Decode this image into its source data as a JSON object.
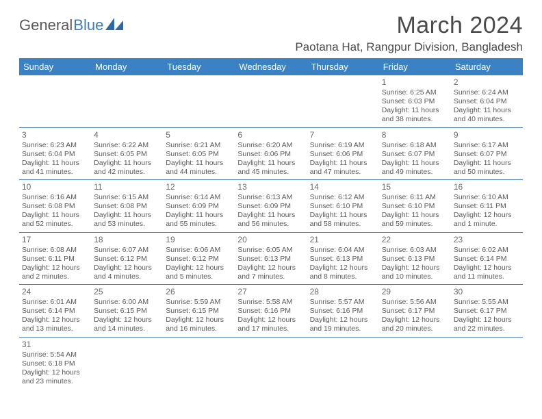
{
  "logo": {
    "text1": "General",
    "text2": "Blue"
  },
  "title": "March 2024",
  "location": "Paotana Hat, Rangpur Division, Bangladesh",
  "colors": {
    "header_bg": "#3b82c4",
    "border": "#4a7db8",
    "text": "#4a4a4a"
  },
  "dayNames": [
    "Sunday",
    "Monday",
    "Tuesday",
    "Wednesday",
    "Thursday",
    "Friday",
    "Saturday"
  ],
  "weeks": [
    [
      null,
      null,
      null,
      null,
      null,
      {
        "n": "1",
        "sr": "Sunrise: 6:25 AM",
        "ss": "Sunset: 6:03 PM",
        "d1": "Daylight: 11 hours",
        "d2": "and 38 minutes."
      },
      {
        "n": "2",
        "sr": "Sunrise: 6:24 AM",
        "ss": "Sunset: 6:04 PM",
        "d1": "Daylight: 11 hours",
        "d2": "and 40 minutes."
      }
    ],
    [
      {
        "n": "3",
        "sr": "Sunrise: 6:23 AM",
        "ss": "Sunset: 6:04 PM",
        "d1": "Daylight: 11 hours",
        "d2": "and 41 minutes."
      },
      {
        "n": "4",
        "sr": "Sunrise: 6:22 AM",
        "ss": "Sunset: 6:05 PM",
        "d1": "Daylight: 11 hours",
        "d2": "and 42 minutes."
      },
      {
        "n": "5",
        "sr": "Sunrise: 6:21 AM",
        "ss": "Sunset: 6:05 PM",
        "d1": "Daylight: 11 hours",
        "d2": "and 44 minutes."
      },
      {
        "n": "6",
        "sr": "Sunrise: 6:20 AM",
        "ss": "Sunset: 6:06 PM",
        "d1": "Daylight: 11 hours",
        "d2": "and 45 minutes."
      },
      {
        "n": "7",
        "sr": "Sunrise: 6:19 AM",
        "ss": "Sunset: 6:06 PM",
        "d1": "Daylight: 11 hours",
        "d2": "and 47 minutes."
      },
      {
        "n": "8",
        "sr": "Sunrise: 6:18 AM",
        "ss": "Sunset: 6:07 PM",
        "d1": "Daylight: 11 hours",
        "d2": "and 49 minutes."
      },
      {
        "n": "9",
        "sr": "Sunrise: 6:17 AM",
        "ss": "Sunset: 6:07 PM",
        "d1": "Daylight: 11 hours",
        "d2": "and 50 minutes."
      }
    ],
    [
      {
        "n": "10",
        "sr": "Sunrise: 6:16 AM",
        "ss": "Sunset: 6:08 PM",
        "d1": "Daylight: 11 hours",
        "d2": "and 52 minutes."
      },
      {
        "n": "11",
        "sr": "Sunrise: 6:15 AM",
        "ss": "Sunset: 6:08 PM",
        "d1": "Daylight: 11 hours",
        "d2": "and 53 minutes."
      },
      {
        "n": "12",
        "sr": "Sunrise: 6:14 AM",
        "ss": "Sunset: 6:09 PM",
        "d1": "Daylight: 11 hours",
        "d2": "and 55 minutes."
      },
      {
        "n": "13",
        "sr": "Sunrise: 6:13 AM",
        "ss": "Sunset: 6:09 PM",
        "d1": "Daylight: 11 hours",
        "d2": "and 56 minutes."
      },
      {
        "n": "14",
        "sr": "Sunrise: 6:12 AM",
        "ss": "Sunset: 6:10 PM",
        "d1": "Daylight: 11 hours",
        "d2": "and 58 minutes."
      },
      {
        "n": "15",
        "sr": "Sunrise: 6:11 AM",
        "ss": "Sunset: 6:10 PM",
        "d1": "Daylight: 11 hours",
        "d2": "and 59 minutes."
      },
      {
        "n": "16",
        "sr": "Sunrise: 6:10 AM",
        "ss": "Sunset: 6:11 PM",
        "d1": "Daylight: 12 hours",
        "d2": "and 1 minute."
      }
    ],
    [
      {
        "n": "17",
        "sr": "Sunrise: 6:08 AM",
        "ss": "Sunset: 6:11 PM",
        "d1": "Daylight: 12 hours",
        "d2": "and 2 minutes."
      },
      {
        "n": "18",
        "sr": "Sunrise: 6:07 AM",
        "ss": "Sunset: 6:12 PM",
        "d1": "Daylight: 12 hours",
        "d2": "and 4 minutes."
      },
      {
        "n": "19",
        "sr": "Sunrise: 6:06 AM",
        "ss": "Sunset: 6:12 PM",
        "d1": "Daylight: 12 hours",
        "d2": "and 5 minutes."
      },
      {
        "n": "20",
        "sr": "Sunrise: 6:05 AM",
        "ss": "Sunset: 6:13 PM",
        "d1": "Daylight: 12 hours",
        "d2": "and 7 minutes."
      },
      {
        "n": "21",
        "sr": "Sunrise: 6:04 AM",
        "ss": "Sunset: 6:13 PM",
        "d1": "Daylight: 12 hours",
        "d2": "and 8 minutes."
      },
      {
        "n": "22",
        "sr": "Sunrise: 6:03 AM",
        "ss": "Sunset: 6:13 PM",
        "d1": "Daylight: 12 hours",
        "d2": "and 10 minutes."
      },
      {
        "n": "23",
        "sr": "Sunrise: 6:02 AM",
        "ss": "Sunset: 6:14 PM",
        "d1": "Daylight: 12 hours",
        "d2": "and 11 minutes."
      }
    ],
    [
      {
        "n": "24",
        "sr": "Sunrise: 6:01 AM",
        "ss": "Sunset: 6:14 PM",
        "d1": "Daylight: 12 hours",
        "d2": "and 13 minutes."
      },
      {
        "n": "25",
        "sr": "Sunrise: 6:00 AM",
        "ss": "Sunset: 6:15 PM",
        "d1": "Daylight: 12 hours",
        "d2": "and 14 minutes."
      },
      {
        "n": "26",
        "sr": "Sunrise: 5:59 AM",
        "ss": "Sunset: 6:15 PM",
        "d1": "Daylight: 12 hours",
        "d2": "and 16 minutes."
      },
      {
        "n": "27",
        "sr": "Sunrise: 5:58 AM",
        "ss": "Sunset: 6:16 PM",
        "d1": "Daylight: 12 hours",
        "d2": "and 17 minutes."
      },
      {
        "n": "28",
        "sr": "Sunrise: 5:57 AM",
        "ss": "Sunset: 6:16 PM",
        "d1": "Daylight: 12 hours",
        "d2": "and 19 minutes."
      },
      {
        "n": "29",
        "sr": "Sunrise: 5:56 AM",
        "ss": "Sunset: 6:17 PM",
        "d1": "Daylight: 12 hours",
        "d2": "and 20 minutes."
      },
      {
        "n": "30",
        "sr": "Sunrise: 5:55 AM",
        "ss": "Sunset: 6:17 PM",
        "d1": "Daylight: 12 hours",
        "d2": "and 22 minutes."
      }
    ],
    [
      {
        "n": "31",
        "sr": "Sunrise: 5:54 AM",
        "ss": "Sunset: 6:18 PM",
        "d1": "Daylight: 12 hours",
        "d2": "and 23 minutes."
      },
      null,
      null,
      null,
      null,
      null,
      null
    ]
  ]
}
